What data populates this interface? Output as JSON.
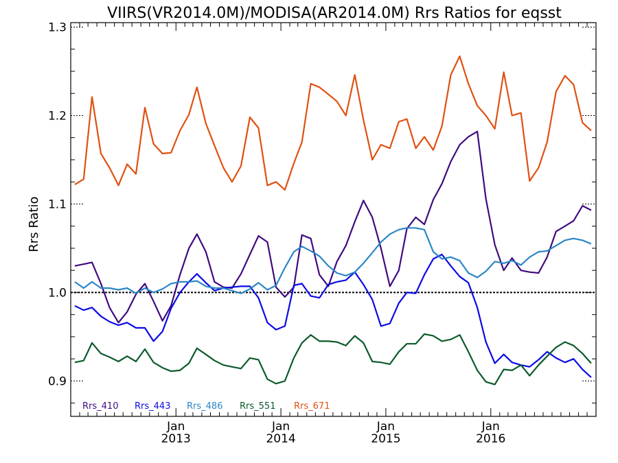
{
  "chart_data": {
    "type": "line",
    "title": "VIIRS(VR2014.0M)/MODISA(AR2014.0M)  Rrs Ratios for eqsst",
    "ylabel": "Rrs Ratio",
    "xlabel": "",
    "ylim": [
      0.86,
      1.305
    ],
    "xlim": [
      "2012-01-01",
      "2016-12-31"
    ],
    "yticks": [
      {
        "value": 0.9,
        "label": "0.9"
      },
      {
        "value": 1.0,
        "label": "1.0"
      },
      {
        "value": 1.1,
        "label": "1.1"
      },
      {
        "value": 1.2,
        "label": "1.2"
      },
      {
        "value": 1.3,
        "label": "1.3"
      }
    ],
    "yminor_step": 0.025,
    "xticks": [
      {
        "date": "2013-01-01",
        "month": "Jan",
        "year": "2013"
      },
      {
        "date": "2014-01-01",
        "month": "Jan",
        "year": "2014"
      },
      {
        "date": "2015-01-01",
        "month": "Jan",
        "year": "2015"
      },
      {
        "date": "2016-01-01",
        "month": "Jan",
        "year": "2016"
      }
    ],
    "reference_line": 1.0,
    "legend_position": "bottom-left",
    "x": [
      "2012-01-15",
      "2012-02-15",
      "2012-03-15",
      "2012-04-15",
      "2012-05-15",
      "2012-06-15",
      "2012-07-15",
      "2012-08-15",
      "2012-09-15",
      "2012-10-15",
      "2012-11-15",
      "2012-12-15",
      "2013-01-15",
      "2013-02-15",
      "2013-03-15",
      "2013-04-15",
      "2013-05-15",
      "2013-06-15",
      "2013-07-15",
      "2013-08-15",
      "2013-09-15",
      "2013-10-15",
      "2013-11-15",
      "2013-12-15",
      "2014-01-15",
      "2014-02-15",
      "2014-03-15",
      "2014-04-15",
      "2014-05-15",
      "2014-06-15",
      "2014-07-15",
      "2014-08-15",
      "2014-09-15",
      "2014-10-15",
      "2014-11-15",
      "2014-12-15",
      "2015-01-15",
      "2015-02-15",
      "2015-03-15",
      "2015-04-15",
      "2015-05-15",
      "2015-06-15",
      "2015-07-15",
      "2015-08-15",
      "2015-09-15",
      "2015-10-15",
      "2015-11-15",
      "2015-12-15",
      "2016-01-15",
      "2016-02-15",
      "2016-03-15",
      "2016-04-15",
      "2016-05-15",
      "2016-06-15",
      "2016-07-15",
      "2016-08-15",
      "2016-09-15",
      "2016-10-15",
      "2016-11-15",
      "2016-12-15"
    ],
    "series": [
      {
        "name": "Rrs_410",
        "color": "#3f0a7f",
        "values": [
          1.03,
          1.032,
          1.034,
          1.01,
          0.983,
          0.966,
          0.978,
          0.998,
          1.01,
          0.99,
          0.968,
          0.985,
          1.02,
          1.05,
          1.066,
          1.046,
          1.012,
          1.006,
          1.005,
          1.021,
          1.043,
          1.064,
          1.057,
          1.006,
          0.995,
          1.006,
          1.065,
          1.061,
          1.02,
          1.007,
          1.035,
          1.053,
          1.08,
          1.104,
          1.085,
          1.05,
          1.007,
          1.025,
          1.072,
          1.085,
          1.077,
          1.105,
          1.123,
          1.148,
          1.167,
          1.176,
          1.182,
          1.106,
          1.054,
          1.025,
          1.039,
          1.025,
          1.023,
          1.022,
          1.04,
          1.069,
          1.075,
          1.081,
          1.098,
          1.093
        ]
      },
      {
        "name": "Rrs_443",
        "color": "#0a0ae6",
        "values": [
          0.985,
          0.98,
          0.983,
          0.973,
          0.967,
          0.963,
          0.966,
          0.96,
          0.96,
          0.945,
          0.956,
          0.982,
          1.0,
          1.012,
          1.021,
          1.011,
          1.002,
          1.005,
          1.006,
          1.007,
          1.007,
          0.994,
          0.966,
          0.958,
          0.962,
          1.008,
          1.01,
          0.996,
          0.994,
          1.009,
          1.012,
          1.014,
          1.023,
          1.009,
          0.992,
          0.962,
          0.965,
          0.988,
          1.0,
          0.999,
          1.02,
          1.038,
          1.043,
          1.03,
          1.018,
          1.011,
          0.983,
          0.944,
          0.92,
          0.93,
          0.921,
          0.918,
          0.916,
          0.924,
          0.933,
          0.926,
          0.921,
          0.925,
          0.913,
          0.904
        ]
      },
      {
        "name": "Rrs_486",
        "color": "#2a86c6",
        "values": [
          1.012,
          1.005,
          1.012,
          1.005,
          1.005,
          1.003,
          1.005,
          0.999,
          1.005,
          1.0,
          1.004,
          1.01,
          1.012,
          1.012,
          1.013,
          1.007,
          1.005,
          1.005,
          1.002,
          0.999,
          1.004,
          1.011,
          1.003,
          1.008,
          1.028,
          1.046,
          1.052,
          1.047,
          1.041,
          1.03,
          1.022,
          1.019,
          1.023,
          1.033,
          1.045,
          1.057,
          1.066,
          1.071,
          1.073,
          1.073,
          1.071,
          1.046,
          1.038,
          1.04,
          1.036,
          1.022,
          1.017,
          1.024,
          1.035,
          1.033,
          1.036,
          1.031,
          1.04,
          1.046,
          1.047,
          1.053,
          1.059,
          1.061,
          1.059,
          1.055
        ]
      },
      {
        "name": "Rrs_551",
        "color": "#0a5a2a",
        "values": [
          0.921,
          0.923,
          0.943,
          0.931,
          0.927,
          0.922,
          0.928,
          0.922,
          0.936,
          0.921,
          0.915,
          0.911,
          0.912,
          0.92,
          0.937,
          0.93,
          0.923,
          0.918,
          0.916,
          0.914,
          0.926,
          0.924,
          0.902,
          0.897,
          0.9,
          0.926,
          0.943,
          0.952,
          0.945,
          0.945,
          0.944,
          0.94,
          0.951,
          0.943,
          0.922,
          0.921,
          0.919,
          0.933,
          0.942,
          0.942,
          0.953,
          0.951,
          0.945,
          0.947,
          0.952,
          0.933,
          0.912,
          0.899,
          0.896,
          0.913,
          0.912,
          0.918,
          0.906,
          0.918,
          0.928,
          0.938,
          0.944,
          0.94,
          0.931,
          0.92
        ]
      },
      {
        "name": "Rrs_671",
        "color": "#e05010",
        "values": [
          1.122,
          1.128,
          1.221,
          1.157,
          1.141,
          1.121,
          1.145,
          1.134,
          1.209,
          1.168,
          1.157,
          1.158,
          1.183,
          1.201,
          1.232,
          1.191,
          1.166,
          1.141,
          1.125,
          1.143,
          1.198,
          1.186,
          1.121,
          1.125,
          1.116,
          1.146,
          1.17,
          1.236,
          1.232,
          1.224,
          1.216,
          1.2,
          1.246,
          1.195,
          1.15,
          1.167,
          1.163,
          1.193,
          1.196,
          1.163,
          1.176,
          1.161,
          1.188,
          1.246,
          1.267,
          1.236,
          1.211,
          1.2,
          1.185,
          1.249,
          1.2,
          1.203,
          1.126,
          1.141,
          1.17,
          1.227,
          1.245,
          1.235,
          1.192,
          1.183
        ]
      }
    ]
  }
}
